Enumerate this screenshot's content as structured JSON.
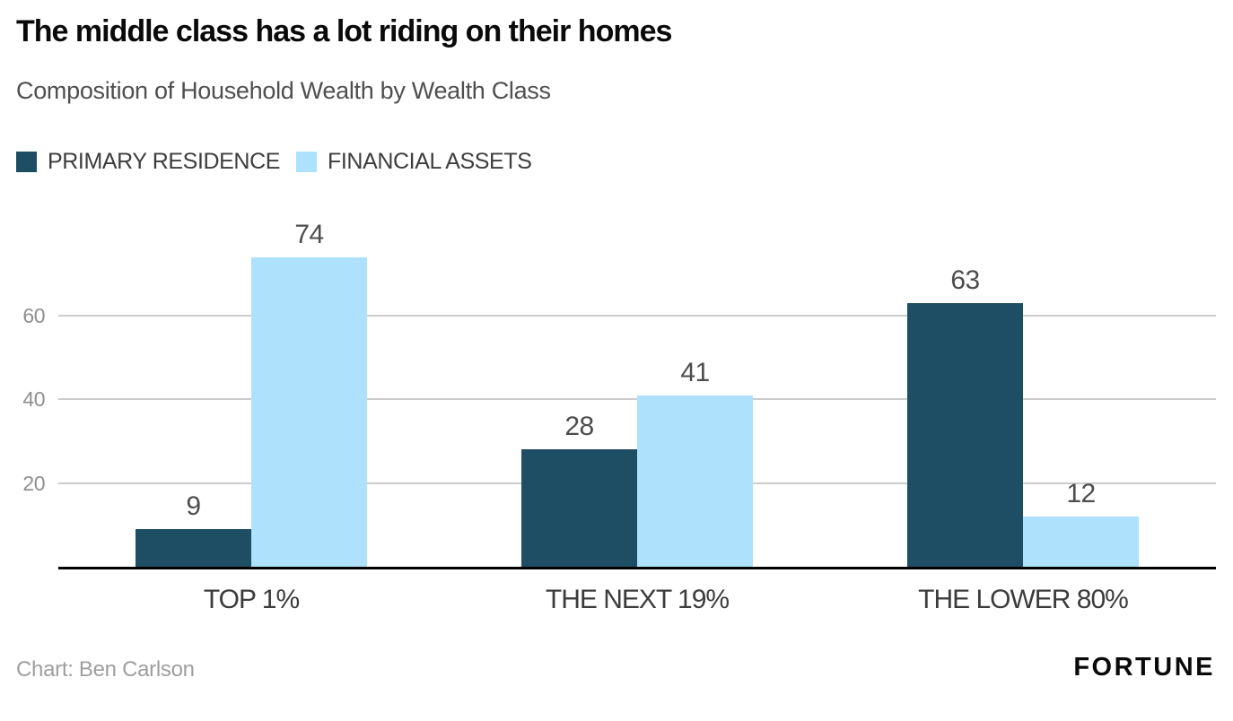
{
  "header": {
    "title": "The middle class has a lot riding on their homes",
    "subtitle": "Composition of Household Wealth by Wealth Class"
  },
  "legend": [
    {
      "label": "PRIMARY RESIDENCE",
      "color": "#1E4E63"
    },
    {
      "label": "FINANCIAL ASSETS",
      "color": "#AEE1FB"
    }
  ],
  "chart_data": {
    "type": "bar",
    "categories": [
      "TOP 1%",
      "THE NEXT 19%",
      "THE LOWER 80%"
    ],
    "series": [
      {
        "name": "PRIMARY RESIDENCE",
        "color": "#1E4E63",
        "values": [
          9,
          28,
          63
        ]
      },
      {
        "name": "FINANCIAL ASSETS",
        "color": "#AEE1FB",
        "values": [
          74,
          41,
          12
        ]
      }
    ],
    "yticks": [
      20,
      40,
      60
    ],
    "ylim": [
      0,
      75
    ],
    "grid": true,
    "grid_color": "#cccccc",
    "axis_color": "#000000",
    "legend_position": "top-left",
    "value_labels": true
  },
  "footer": {
    "credit": "Chart: Ben Carlson",
    "brand": "FORTUNE"
  }
}
